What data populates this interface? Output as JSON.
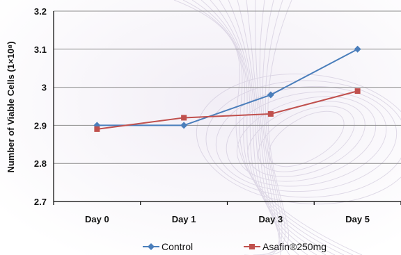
{
  "chart_data": {
    "type": "line",
    "categories": [
      "Day 0",
      "Day 1",
      "Day 3",
      "Day 5"
    ],
    "ylabel": "Number of Viable Cells (1×10⁸)",
    "ylim": [
      2.7,
      3.2
    ],
    "yticks": [
      "2.7",
      "2.8",
      "2.9",
      "3",
      "3.1",
      "3.2"
    ],
    "grid": true,
    "legend_position": "bottom",
    "series": [
      {
        "name": "Control",
        "values": [
          2.9,
          2.9,
          2.98,
          3.1
        ],
        "color": "#4a7ebb",
        "marker": "diamond"
      },
      {
        "name": "Asafin®250mg",
        "values": [
          2.89,
          2.92,
          2.93,
          2.99
        ],
        "color": "#c0504d",
        "marker": "square"
      }
    ]
  }
}
